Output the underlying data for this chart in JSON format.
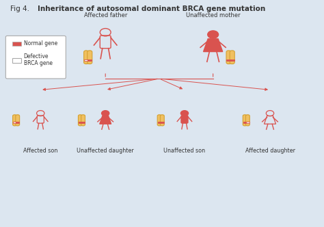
{
  "title": "Fig 4. Inheritance of autosomal dominant BRCA gene mutation",
  "title_bold_part": "Inheritance of autosomal dominant BRCA gene mutation",
  "title_normal_part": "Fig 4. ",
  "bg_color": "#dce6f0",
  "inner_bg": "#f0f4f8",
  "parent_labels": [
    "Affected father",
    "Unaffected mother"
  ],
  "child_labels": [
    "Affected son",
    "Unaffected daughter",
    "Unaffected son",
    "Affected daughter"
  ],
  "legend_items": [
    [
      "Normal gene",
      "#d9534f"
    ],
    [
      "Defective\nBRCA gene",
      "#ffffff"
    ]
  ],
  "affected_color": "#d9534f",
  "unaffected_color": "#d9534f",
  "outline_color": "#d9534f",
  "chrom_body_color": "#f0c060",
  "chrom_outline": "#d4a030",
  "arrow_color": "#d9534f",
  "line_color": "#d9534f",
  "text_color": "#333333",
  "legend_border": "#aaaaaa"
}
